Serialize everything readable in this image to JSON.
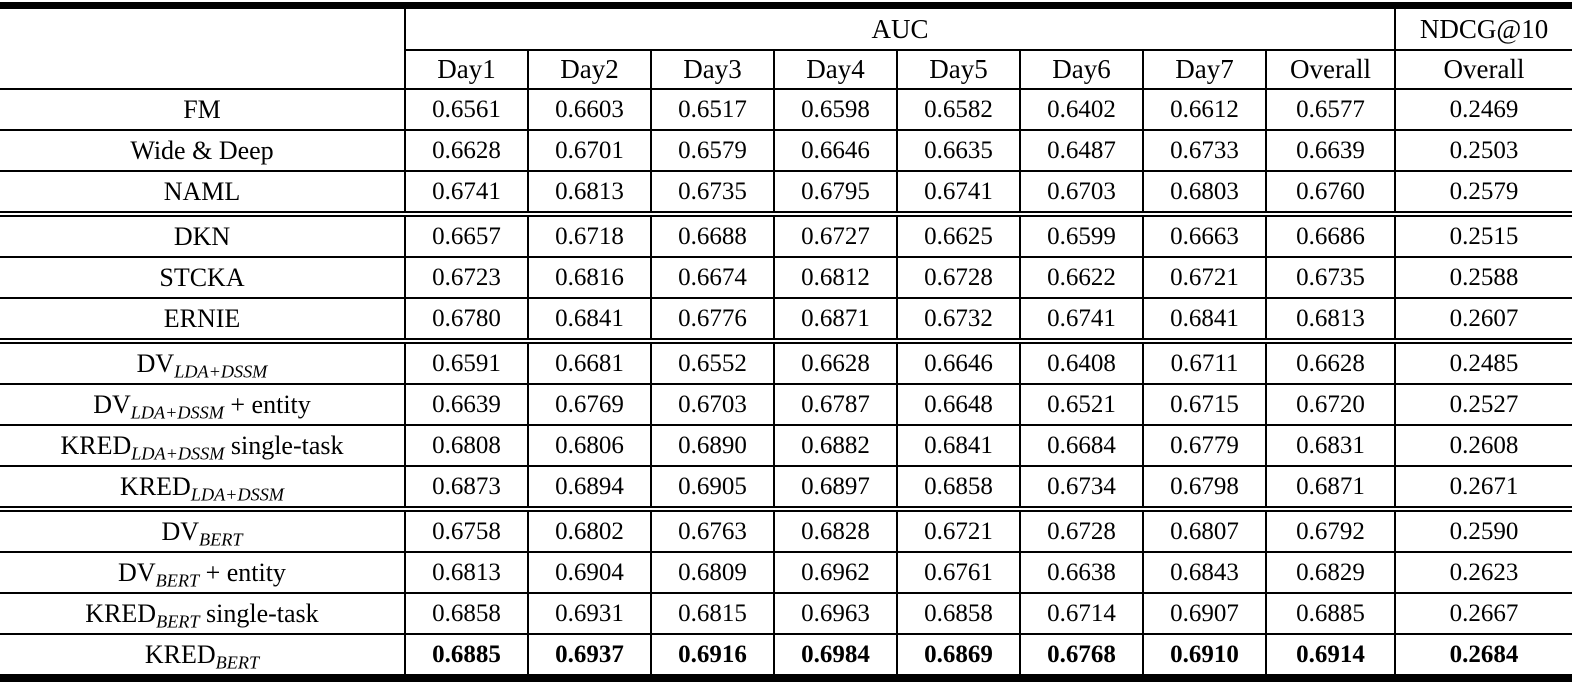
{
  "header": {
    "auc_label": "AUC",
    "ndcg_label": "NDCG@10",
    "day_cols": [
      "Day1",
      "Day2",
      "Day3",
      "Day4",
      "Day5",
      "Day6",
      "Day7",
      "Overall"
    ],
    "ndcg_sub": "Overall"
  },
  "groups": [
    {
      "rows": [
        {
          "label": {
            "base": "FM",
            "sub": "",
            "suffix": ""
          },
          "bold": false,
          "values": [
            "0.6561",
            "0.6603",
            "0.6517",
            "0.6598",
            "0.6582",
            "0.6402",
            "0.6612",
            "0.6577",
            "0.2469"
          ]
        },
        {
          "label": {
            "base": "Wide & Deep",
            "sub": "",
            "suffix": ""
          },
          "bold": false,
          "values": [
            "0.6628",
            "0.6701",
            "0.6579",
            "0.6646",
            "0.6635",
            "0.6487",
            "0.6733",
            "0.6639",
            "0.2503"
          ]
        },
        {
          "label": {
            "base": "NAML",
            "sub": "",
            "suffix": ""
          },
          "bold": false,
          "values": [
            "0.6741",
            "0.6813",
            "0.6735",
            "0.6795",
            "0.6741",
            "0.6703",
            "0.6803",
            "0.6760",
            "0.2579"
          ]
        }
      ]
    },
    {
      "rows": [
        {
          "label": {
            "base": "DKN",
            "sub": "",
            "suffix": ""
          },
          "bold": false,
          "values": [
            "0.6657",
            "0.6718",
            "0.6688",
            "0.6727",
            "0.6625",
            "0.6599",
            "0.6663",
            "0.6686",
            "0.2515"
          ]
        },
        {
          "label": {
            "base": "STCKA",
            "sub": "",
            "suffix": ""
          },
          "bold": false,
          "values": [
            "0.6723",
            "0.6816",
            "0.6674",
            "0.6812",
            "0.6728",
            "0.6622",
            "0.6721",
            "0.6735",
            "0.2588"
          ]
        },
        {
          "label": {
            "base": "ERNIE",
            "sub": "",
            "suffix": ""
          },
          "bold": false,
          "values": [
            "0.6780",
            "0.6841",
            "0.6776",
            "0.6871",
            "0.6732",
            "0.6741",
            "0.6841",
            "0.6813",
            "0.2607"
          ]
        }
      ]
    },
    {
      "rows": [
        {
          "label": {
            "base": "DV",
            "sub": "LDA+DSSM",
            "suffix": ""
          },
          "bold": false,
          "values": [
            "0.6591",
            "0.6681",
            "0.6552",
            "0.6628",
            "0.6646",
            "0.6408",
            "0.6711",
            "0.6628",
            "0.2485"
          ]
        },
        {
          "label": {
            "base": "DV",
            "sub": "LDA+DSSM",
            "suffix": " + entity"
          },
          "bold": false,
          "values": [
            "0.6639",
            "0.6769",
            "0.6703",
            "0.6787",
            "0.6648",
            "0.6521",
            "0.6715",
            "0.6720",
            "0.2527"
          ]
        },
        {
          "label": {
            "base": "KRED",
            "sub": "LDA+DSSM",
            "suffix": " single-task"
          },
          "bold": false,
          "values": [
            "0.6808",
            "0.6806",
            "0.6890",
            "0.6882",
            "0.6841",
            "0.6684",
            "0.6779",
            "0.6831",
            "0.2608"
          ]
        },
        {
          "label": {
            "base": "KRED",
            "sub": "LDA+DSSM",
            "suffix": ""
          },
          "bold": false,
          "values": [
            "0.6873",
            "0.6894",
            "0.6905",
            "0.6897",
            "0.6858",
            "0.6734",
            "0.6798",
            "0.6871",
            "0.2671"
          ]
        }
      ]
    },
    {
      "rows": [
        {
          "label": {
            "base": "DV",
            "sub": "BERT",
            "suffix": ""
          },
          "bold": false,
          "values": [
            "0.6758",
            "0.6802",
            "0.6763",
            "0.6828",
            "0.6721",
            "0.6728",
            "0.6807",
            "0.6792",
            "0.2590"
          ]
        },
        {
          "label": {
            "base": "DV",
            "sub": "BERT",
            "suffix": " + entity"
          },
          "bold": false,
          "values": [
            "0.6813",
            "0.6904",
            "0.6809",
            "0.6962",
            "0.6761",
            "0.6638",
            "0.6843",
            "0.6829",
            "0.2623"
          ]
        },
        {
          "label": {
            "base": "KRED",
            "sub": "BERT",
            "suffix": " single-task"
          },
          "bold": false,
          "values": [
            "0.6858",
            "0.6931",
            "0.6815",
            "0.6963",
            "0.6858",
            "0.6714",
            "0.6907",
            "0.6885",
            "0.2667"
          ]
        },
        {
          "label": {
            "base": "KRED",
            "sub": "BERT",
            "suffix": ""
          },
          "bold": true,
          "values": [
            "0.6885",
            "0.6937",
            "0.6916",
            "0.6984",
            "0.6869",
            "0.6768",
            "0.6910",
            "0.6914",
            "0.2684"
          ]
        }
      ]
    }
  ]
}
